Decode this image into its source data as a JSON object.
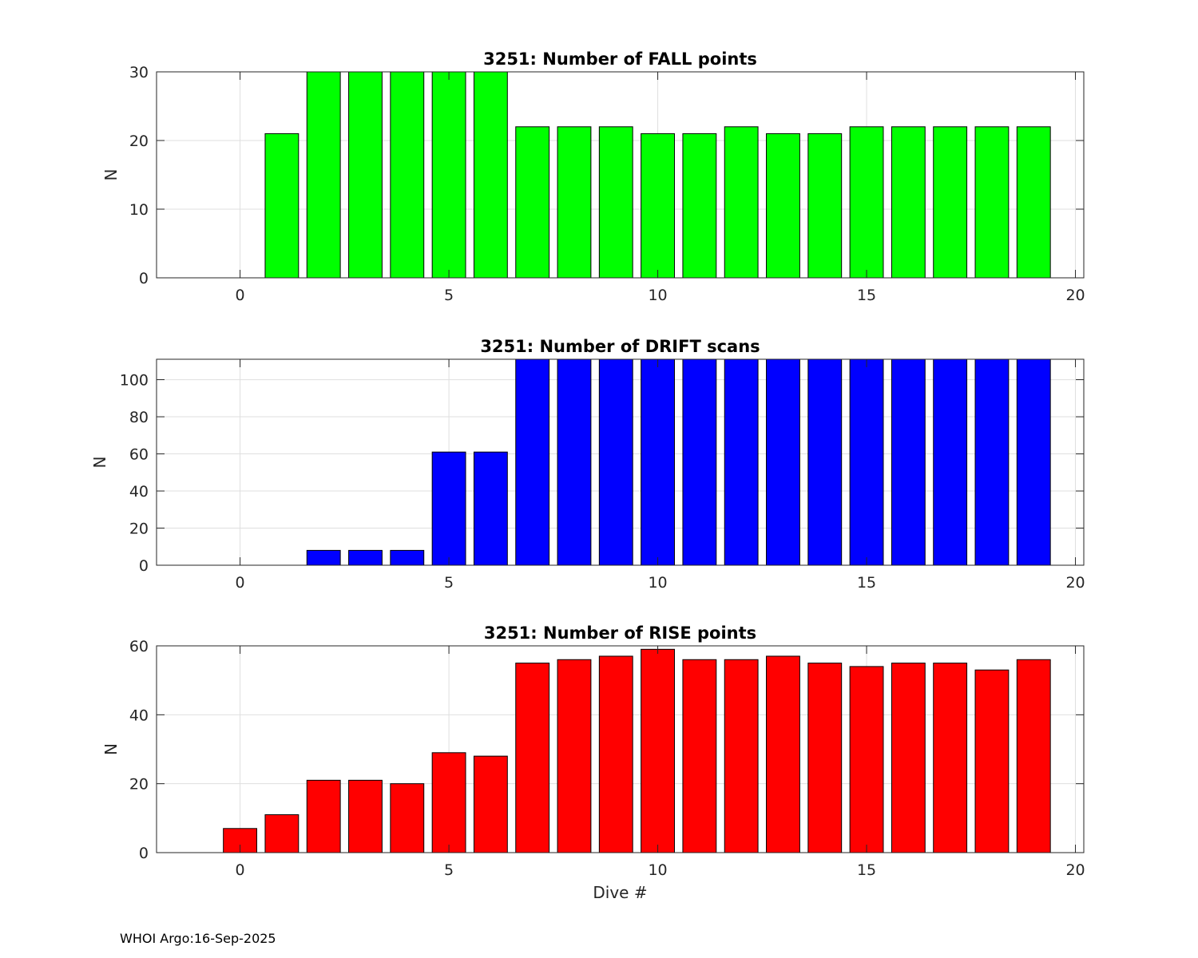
{
  "chart_data": [
    {
      "type": "bar",
      "title": "3251: Number of FALL points",
      "xlabel": "",
      "ylabel": "N",
      "color": "#00ff00",
      "xlim": [
        -2,
        20.2
      ],
      "ylim": [
        0,
        30
      ],
      "xticks": [
        0,
        5,
        10,
        15,
        20
      ],
      "yticks": [
        0,
        10,
        20,
        30
      ],
      "x": [
        0,
        1,
        2,
        3,
        4,
        5,
        6,
        7,
        8,
        9,
        10,
        11,
        12,
        13,
        14,
        15,
        16,
        17,
        18,
        19
      ],
      "values": [
        0,
        21,
        30,
        30,
        30,
        30,
        30,
        22,
        22,
        22,
        21,
        21,
        22,
        21,
        21,
        22,
        22,
        22,
        22,
        22
      ]
    },
    {
      "type": "bar",
      "title": "3251: Number of DRIFT scans",
      "xlabel": "",
      "ylabel": "N",
      "color": "#0000ff",
      "xlim": [
        -2,
        20.2
      ],
      "ylim": [
        0,
        111
      ],
      "xticks": [
        0,
        5,
        10,
        15,
        20
      ],
      "yticks": [
        0,
        20,
        40,
        60,
        80,
        100
      ],
      "x": [
        0,
        1,
        2,
        3,
        4,
        5,
        6,
        7,
        8,
        9,
        10,
        11,
        12,
        13,
        14,
        15,
        16,
        17,
        18,
        19
      ],
      "values": [
        0,
        0,
        8,
        8,
        8,
        61,
        61,
        111,
        111,
        111,
        111,
        111,
        111,
        111,
        111,
        111,
        111,
        111,
        111,
        111
      ]
    },
    {
      "type": "bar",
      "title": "3251: Number of RISE points",
      "xlabel": "Dive #",
      "ylabel": "N",
      "color": "#ff0000",
      "xlim": [
        -2,
        20.2
      ],
      "ylim": [
        0,
        60
      ],
      "xticks": [
        0,
        5,
        10,
        15,
        20
      ],
      "yticks": [
        0,
        20,
        40,
        60
      ],
      "x": [
        0,
        1,
        2,
        3,
        4,
        5,
        6,
        7,
        8,
        9,
        10,
        11,
        12,
        13,
        14,
        15,
        16,
        17,
        18,
        19
      ],
      "values": [
        7,
        11,
        21,
        21,
        20,
        29,
        28,
        55,
        56,
        57,
        59,
        56,
        56,
        57,
        55,
        54,
        55,
        55,
        53,
        56
      ]
    }
  ],
  "footer": "WHOI Argo:16-Sep-2025"
}
